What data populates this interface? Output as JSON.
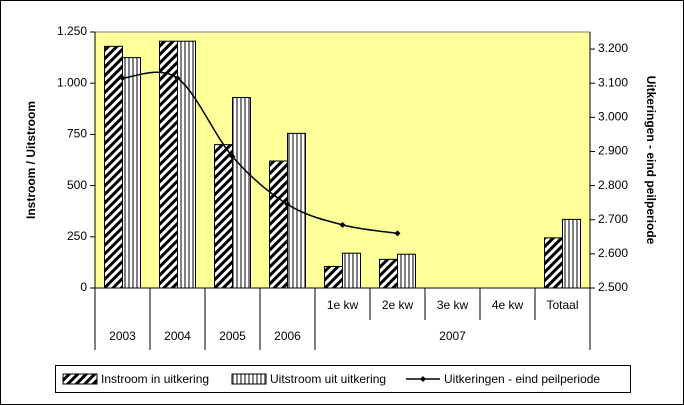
{
  "chart_data": {
    "type": "bar",
    "categories": [
      "2003",
      "2004",
      "2005",
      "2006",
      "1e kw",
      "2e kw",
      "3e kw",
      "4e kw",
      "Totaal"
    ],
    "category_group": "2007",
    "ylabel": "Instroom / Uitstroom",
    "y2label": "Uitkeringen - eind peilperiode",
    "ylim": [
      0,
      1250
    ],
    "yticks": [
      0,
      250,
      500,
      750,
      {
        "value": 1000,
        "label": "1.000"
      },
      {
        "value": 1250,
        "label": "1.250"
      }
    ],
    "y2lim": [
      2500,
      3250
    ],
    "y2ticks": [
      {
        "value": 2500,
        "label": "2.500"
      },
      {
        "value": 2600,
        "label": "2.600"
      },
      {
        "value": 2700,
        "label": "2.700"
      },
      {
        "value": 2800,
        "label": "2.800"
      },
      {
        "value": 2900,
        "label": "2.900"
      },
      {
        "value": 3000,
        "label": "3.000"
      },
      {
        "value": 3100,
        "label": "3.100"
      },
      {
        "value": 3200,
        "label": "3.200"
      }
    ],
    "plot_background": "#ffff99",
    "series": [
      {
        "name": "Instroom in uitkering",
        "type": "bar",
        "pattern": "diagonal",
        "color": "#000000",
        "values": [
          1180,
          1205,
          700,
          620,
          105,
          140,
          null,
          null,
          245
        ]
      },
      {
        "name": "Uitstroom uit uitkering",
        "type": "bar",
        "pattern": "vertical",
        "color": "#808080",
        "values": [
          1125,
          1205,
          930,
          755,
          170,
          165,
          null,
          null,
          335
        ]
      },
      {
        "name": "Uitkeringen - eind peilperiode",
        "type": "line",
        "axis": "y2",
        "smooth": true,
        "color": "#000000",
        "values": [
          3115,
          3115,
          2885,
          2745,
          2685,
          2660,
          null,
          null,
          null
        ]
      }
    ]
  }
}
